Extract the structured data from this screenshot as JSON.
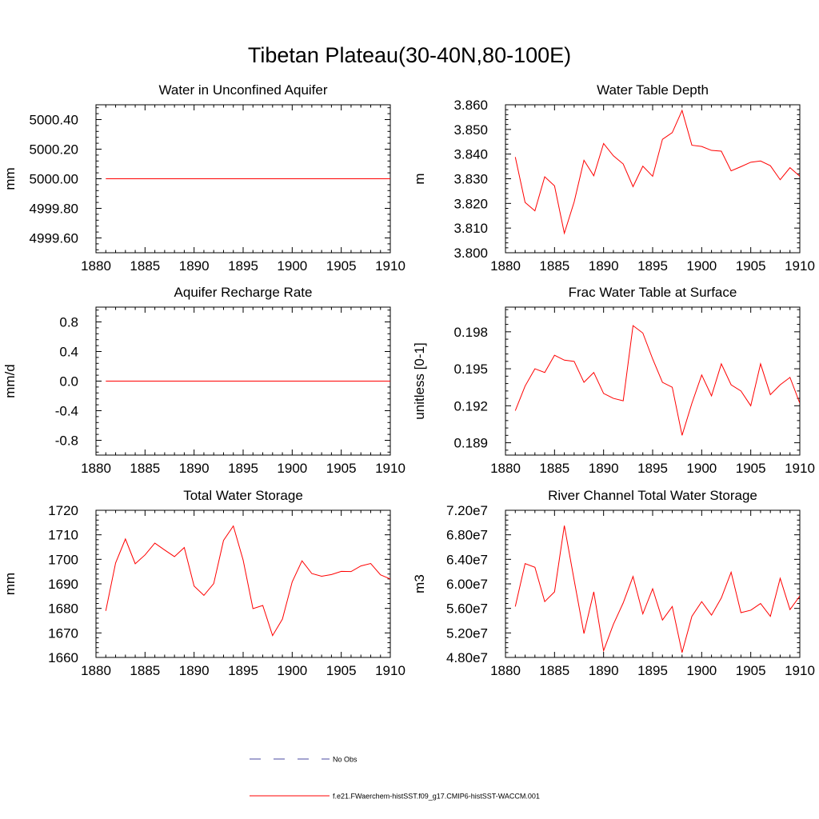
{
  "title": "Tibetan Plateau(30-40N,80-100E)",
  "legend": {
    "items": [
      {
        "label": "No Obs",
        "color": "#4a4aa0",
        "style": "dashed"
      },
      {
        "label": "f.e21.FWaerchem-histSST.f09_g17.CMIP6-histSST-WACCM.001",
        "color": "#ff0000",
        "style": "solid"
      }
    ]
  },
  "chart_data": [
    {
      "type": "line",
      "title": "Water in Unconfined Aquifer",
      "xlabel": "",
      "ylabel": "mm",
      "xlim": [
        1880,
        1910
      ],
      "ylim": [
        4999.5,
        5000.5
      ],
      "xticks": [
        1880,
        1885,
        1890,
        1895,
        1900,
        1905,
        1910
      ],
      "yticks": [
        4999.6,
        4999.8,
        5000.0,
        5000.2,
        5000.4
      ],
      "ytick_labels": [
        "4999.60",
        "4999.80",
        "5000.00",
        "5000.20",
        "5000.40"
      ],
      "color": "#ff0000",
      "x": [
        1881,
        1882,
        1883,
        1884,
        1885,
        1886,
        1887,
        1888,
        1889,
        1890,
        1891,
        1892,
        1893,
        1894,
        1895,
        1896,
        1897,
        1898,
        1899,
        1900,
        1901,
        1902,
        1903,
        1904,
        1905,
        1906,
        1907,
        1908,
        1909,
        1910
      ],
      "values": [
        5000,
        5000,
        5000,
        5000,
        5000,
        5000,
        5000,
        5000,
        5000,
        5000,
        5000,
        5000,
        5000,
        5000,
        5000,
        5000,
        5000,
        5000,
        5000,
        5000,
        5000,
        5000,
        5000,
        5000,
        5000,
        5000,
        5000,
        5000,
        5000,
        5000
      ]
    },
    {
      "type": "line",
      "title": "Water Table Depth",
      "xlabel": "",
      "ylabel": "m",
      "xlim": [
        1880,
        1910
      ],
      "ylim": [
        3.8,
        3.86
      ],
      "xticks": [
        1880,
        1885,
        1890,
        1895,
        1900,
        1905,
        1910
      ],
      "yticks": [
        3.8,
        3.81,
        3.82,
        3.83,
        3.84,
        3.85,
        3.86
      ],
      "ytick_labels": [
        "3.800",
        "3.810",
        "3.820",
        "3.830",
        "3.840",
        "3.850",
        "3.860"
      ],
      "color": "#ff0000",
      "x": [
        1881,
        1882,
        1883,
        1884,
        1885,
        1886,
        1887,
        1888,
        1889,
        1890,
        1891,
        1892,
        1893,
        1894,
        1895,
        1896,
        1897,
        1898,
        1899,
        1900,
        1901,
        1902,
        1903,
        1904,
        1905,
        1906,
        1907,
        1908,
        1909,
        1910
      ],
      "values": [
        3.8388,
        3.8204,
        3.817,
        3.8308,
        3.8271,
        3.8079,
        3.8206,
        3.8375,
        3.8312,
        3.8443,
        3.8393,
        3.836,
        3.8268,
        3.8351,
        3.831,
        3.846,
        3.8487,
        3.8577,
        3.8436,
        3.8431,
        3.8415,
        3.8412,
        3.8332,
        3.8349,
        3.8367,
        3.8372,
        3.8353,
        3.8296,
        3.8345,
        3.831
      ]
    },
    {
      "type": "line",
      "title": "Aquifer Recharge Rate",
      "xlabel": "",
      "ylabel": "mm/d",
      "xlim": [
        1880,
        1910
      ],
      "ylim": [
        -1.0,
        1.0
      ],
      "xticks": [
        1880,
        1885,
        1890,
        1895,
        1900,
        1905,
        1910
      ],
      "yticks": [
        -0.8,
        -0.4,
        0.0,
        0.4,
        0.8
      ],
      "ytick_labels": [
        "-0.8",
        "-0.4",
        "0.0",
        "0.4",
        "0.8"
      ],
      "color": "#ff0000",
      "x": [
        1881,
        1882,
        1883,
        1884,
        1885,
        1886,
        1887,
        1888,
        1889,
        1890,
        1891,
        1892,
        1893,
        1894,
        1895,
        1896,
        1897,
        1898,
        1899,
        1900,
        1901,
        1902,
        1903,
        1904,
        1905,
        1906,
        1907,
        1908,
        1909,
        1910
      ],
      "values": [
        0,
        0,
        0,
        0,
        0,
        0,
        0,
        0,
        0,
        0,
        0,
        0,
        0,
        0,
        0,
        0,
        0,
        0,
        0,
        0,
        0,
        0,
        0,
        0,
        0,
        0,
        0,
        0,
        0,
        0
      ]
    },
    {
      "type": "line",
      "title": "Frac Water Table at Surface",
      "xlabel": "",
      "ylabel": "unitless [0-1]",
      "xlim": [
        1880,
        1910
      ],
      "ylim": [
        0.188,
        0.2
      ],
      "xticks": [
        1880,
        1885,
        1890,
        1895,
        1900,
        1905,
        1910
      ],
      "yticks": [
        0.189,
        0.192,
        0.195,
        0.198
      ],
      "ytick_labels": [
        "0.189",
        "0.192",
        "0.195",
        "0.198"
      ],
      "color": "#ff0000",
      "x": [
        1881,
        1882,
        1883,
        1884,
        1885,
        1886,
        1887,
        1888,
        1889,
        1890,
        1891,
        1892,
        1893,
        1894,
        1895,
        1896,
        1897,
        1898,
        1899,
        1900,
        1901,
        1902,
        1903,
        1904,
        1905,
        1906,
        1907,
        1908,
        1909,
        1910
      ],
      "values": [
        0.1916,
        0.1936,
        0.195,
        0.1947,
        0.1961,
        0.1957,
        0.1956,
        0.1939,
        0.1947,
        0.193,
        0.1926,
        0.1924,
        0.1985,
        0.1979,
        0.1958,
        0.1939,
        0.1935,
        0.1896,
        0.1922,
        0.1945,
        0.1928,
        0.1954,
        0.1937,
        0.1932,
        0.192,
        0.1954,
        0.1929,
        0.1937,
        0.1943,
        0.1922
      ]
    },
    {
      "type": "line",
      "title": "Total Water Storage",
      "xlabel": "",
      "ylabel": "mm",
      "xlim": [
        1880,
        1910
      ],
      "ylim": [
        1660,
        1720
      ],
      "xticks": [
        1880,
        1885,
        1890,
        1895,
        1900,
        1905,
        1910
      ],
      "yticks": [
        1660,
        1670,
        1680,
        1690,
        1700,
        1710,
        1720
      ],
      "ytick_labels": [
        "1660",
        "1670",
        "1680",
        "1690",
        "1700",
        "1710",
        "1720"
      ],
      "color": "#ff0000",
      "x": [
        1881,
        1882,
        1883,
        1884,
        1885,
        1886,
        1887,
        1888,
        1889,
        1890,
        1891,
        1892,
        1893,
        1894,
        1895,
        1896,
        1897,
        1898,
        1899,
        1900,
        1901,
        1902,
        1903,
        1904,
        1905,
        1906,
        1907,
        1908,
        1909,
        1910
      ],
      "values": [
        1679,
        1698.5,
        1708.3,
        1698.2,
        1701.8,
        1706.6,
        1703.8,
        1701.1,
        1704.8,
        1689.1,
        1685.3,
        1690.1,
        1707.7,
        1713.6,
        1699.7,
        1679.9,
        1681.2,
        1668.9,
        1675.6,
        1690.8,
        1699.4,
        1694.2,
        1693.1,
        1693.8,
        1695.1,
        1695.0,
        1697.3,
        1698.3,
        1693.7,
        1692.0
      ]
    },
    {
      "type": "line",
      "title": "River Channel Total Water Storage",
      "xlabel": "",
      "ylabel": "m3",
      "xlim": [
        1880,
        1910
      ],
      "ylim": [
        48000000,
        72000000
      ],
      "xticks": [
        1880,
        1885,
        1890,
        1895,
        1900,
        1905,
        1910
      ],
      "yticks": [
        48000000,
        52000000,
        56000000,
        60000000,
        64000000,
        68000000,
        72000000
      ],
      "ytick_labels": [
        "4.80e7",
        "5.20e7",
        "5.60e7",
        "6.00e7",
        "6.40e7",
        "6.80e7",
        "7.20e7"
      ],
      "color": "#ff0000",
      "x": [
        1881,
        1882,
        1883,
        1884,
        1885,
        1886,
        1887,
        1888,
        1889,
        1890,
        1891,
        1892,
        1893,
        1894,
        1895,
        1896,
        1897,
        1898,
        1899,
        1900,
        1901,
        1902,
        1903,
        1904,
        1905,
        1906,
        1907,
        1908,
        1909,
        1910
      ],
      "values": [
        56300000,
        63300000,
        62700000,
        57100000,
        58700000,
        69500000,
        60600000,
        51900000,
        58700000,
        49100000,
        53400000,
        56900000,
        61200000,
        55100000,
        59200000,
        54100000,
        56300000,
        48800000,
        54700000,
        57100000,
        54900000,
        57700000,
        61900000,
        55300000,
        55700000,
        56800000,
        54700000,
        60900000,
        55800000,
        58000000
      ]
    }
  ]
}
